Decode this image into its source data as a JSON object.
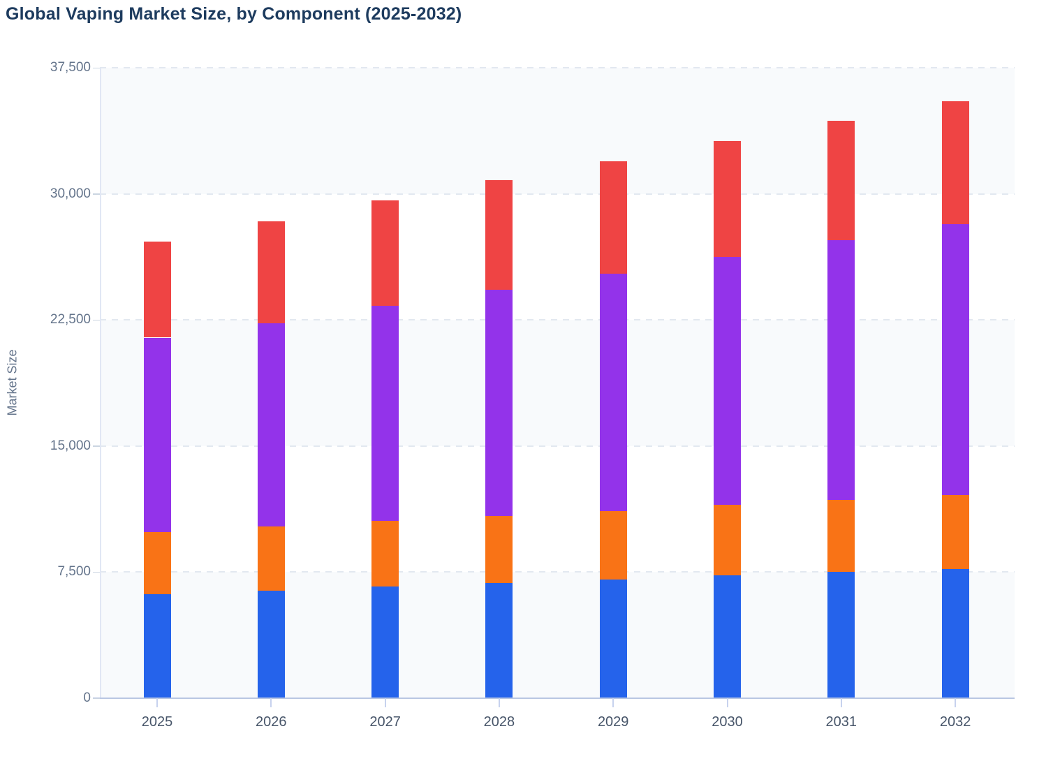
{
  "title": "Global Vaping Market Size, by Component (2025-2032)",
  "y_axis": {
    "label": "Market Size",
    "ticks": [
      "0",
      "7,500",
      "15,000",
      "22,500",
      "30,000",
      "37,500"
    ]
  },
  "chart_data": {
    "type": "bar",
    "stacked": true,
    "title": "Global Vaping Market Size, by Component (2025-2032)",
    "xlabel": "",
    "ylabel": "Market Size",
    "ylim": [
      0,
      37500
    ],
    "grid": "horizontal dashed, alternating background bands",
    "legend": "none",
    "categories": [
      "2025",
      "2026",
      "2027",
      "2028",
      "2029",
      "2030",
      "2031",
      "2032"
    ],
    "series": [
      {
        "name": "blue-bottom-segment",
        "color": "#2563EB",
        "values": [
          6200,
          6400,
          6650,
          6850,
          7050,
          7300,
          7500,
          7700
        ]
      },
      {
        "name": "orange-segment",
        "color": "#F97316",
        "values": [
          3700,
          3800,
          3900,
          4000,
          4100,
          4200,
          4300,
          4400
        ]
      },
      {
        "name": "purple-segment",
        "color": "#9333EA",
        "values": [
          11550,
          12100,
          12800,
          13450,
          14100,
          14750,
          15450,
          16100
        ]
      },
      {
        "name": "red-top-segment",
        "color": "#EF4444",
        "values": [
          5700,
          6050,
          6250,
          6500,
          6700,
          6900,
          7100,
          7300
        ]
      }
    ],
    "stack_totals": [
      27150,
      28350,
      29600,
      30800,
      31950,
      33150,
      34350,
      35500
    ]
  }
}
